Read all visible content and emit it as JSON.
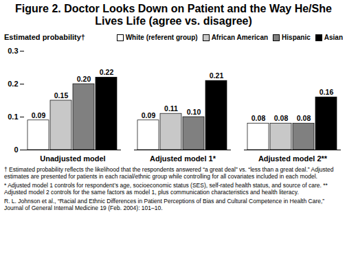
{
  "chart_data": {
    "type": "bar",
    "title": "Figure 2. Doctor Looks Down on Patient and the Way He/She Lives Life (agree vs. disagree)",
    "y_label": "Estimated probability†",
    "categories": [
      "Unadjusted model",
      "Adjusted model 1*",
      "Adjusted model 2**"
    ],
    "series": [
      {
        "name": "White (referent group)",
        "color": "#ffffff",
        "values": [
          0.09,
          0.09,
          0.08
        ],
        "value_labels": [
          "0.09",
          "0.09",
          "0.08"
        ]
      },
      {
        "name": "African American",
        "color": "#c8c8c8",
        "values": [
          0.15,
          0.11,
          0.08
        ],
        "value_labels": [
          "0.15",
          "0.11",
          "0.08"
        ]
      },
      {
        "name": "Hispanic",
        "color": "#808080",
        "values": [
          0.2,
          0.1,
          0.08
        ],
        "value_labels": [
          "0.20",
          "0.10",
          "0.08"
        ]
      },
      {
        "name": "Asian",
        "color": "#000000",
        "values": [
          0.22,
          0.21,
          0.16
        ],
        "value_labels": [
          "0.22",
          "0.21",
          "0.16"
        ]
      }
    ],
    "ylim": [
      0,
      0.3
    ],
    "yticks": [
      0,
      0.1,
      0.2,
      0.3
    ],
    "grid": false,
    "legend": "top-right",
    "data_labels": true,
    "annotations": [
      "† Estimated probability reflects the likelihood that the respondents answered “a great deal” vs. “less than a great deal.” Adjusted estimates are presented for patients in each racial/ethnic group while controlling for all covariates included in each model.",
      "* Adjusted model 1 controls for respondent’s age, socioeconomic status (SES), self-rated health status, and source of care.   ** Adjusted model 2 controls for the same factors as model 1, plus communication characteristics and health literacy.",
      "R. L. Johnson et al., “Racial and Ethnic Differences in Patient Perceptions of Bias and Cultural Competence in Health Care,” Journal of General Internal Medicine 19 (Feb. 2004): 101–10."
    ]
  }
}
